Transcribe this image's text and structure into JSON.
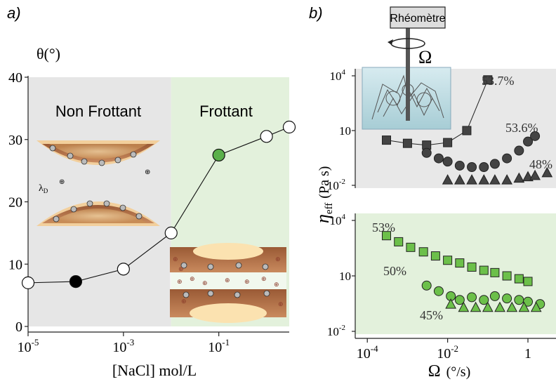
{
  "panel_a": {
    "label": "a)",
    "ylabel": "θ(°)",
    "xlabel": "[NaCl]  mol/L",
    "region_left_label": "Non Frottant",
    "region_right_label": "Frottant",
    "debye_label": "λ",
    "debye_sub": "D",
    "colors": {
      "region_left": "#e6e6e6",
      "region_right": "#e3f1dc",
      "filled_black": "#000000",
      "filled_green": "#5ab04a"
    }
  },
  "panel_b": {
    "label": "b)",
    "rheometer_label": "Rhéomètre",
    "omega_symbol": "Ω",
    "ylabel_main": "η",
    "ylabel_sub": "eff",
    "ylabel_unit": "(Pa s)",
    "xlabel_main": "Ω",
    "xlabel_unit": "(°/s)",
    "colors": {
      "top_bg": "#e8e8e8",
      "bottom_bg": "#e3f1dc",
      "top_marker": "#444444",
      "bottom_marker": "#6cc04a"
    }
  },
  "chart_data": [
    {
      "type": "line",
      "panel": "a",
      "xlabel": "[NaCl]  mol/L",
      "ylabel": "θ(°)",
      "xscale": "log",
      "xlim": [
        1e-05,
        1.0
      ],
      "ylim": [
        0,
        40
      ],
      "x_ticks": [
        "10",
        "10",
        "10"
      ],
      "x_tick_exponents": [
        "-5",
        "-3",
        "-1"
      ],
      "x_tick_values": [
        1e-05,
        0.001,
        0.1
      ],
      "y_ticks": [
        "0",
        "10",
        "20",
        "30",
        "40"
      ],
      "y_tick_values": [
        0,
        10,
        20,
        30,
        40
      ],
      "region_boundary_x": 0.01,
      "points": [
        {
          "x": 1e-05,
          "y": 7,
          "fill": "white"
        },
        {
          "x": 0.0001,
          "y": 7.2,
          "fill": "black"
        },
        {
          "x": 0.001,
          "y": 9.2,
          "fill": "white"
        },
        {
          "x": 0.01,
          "y": 15,
          "fill": "white"
        },
        {
          "x": 0.1,
          "y": 27.5,
          "fill": "green"
        },
        {
          "x": 1.0,
          "y": 30.5,
          "fill": "white"
        },
        {
          "x": 3.0,
          "y": 32,
          "fill": "white"
        }
      ]
    },
    {
      "type": "scatter",
      "panel": "b-top",
      "yscale": "log",
      "xscale": "log",
      "ylim": [
        0.01,
        10000
      ],
      "y_ticks": [
        "10",
        "10",
        "10"
      ],
      "y_tick_exponents": [
        "-2",
        "",
        "4"
      ],
      "y_tick_values": [
        0.01,
        10,
        10000
      ],
      "series": [
        {
          "name": "53.7%",
          "marker": "square",
          "connected": true,
          "x": [
            0.0003,
            0.001,
            0.003,
            0.01,
            0.03,
            0.1
          ],
          "y": [
            3,
            2,
            1.6,
            2.2,
            10,
            6000
          ]
        },
        {
          "name": "53.6%",
          "marker": "circle",
          "connected": false,
          "x": [
            0.003,
            0.006,
            0.01,
            0.02,
            0.04,
            0.08,
            0.15,
            0.3,
            0.6,
            1.0,
            1.5
          ],
          "y": [
            0.6,
            0.3,
            0.2,
            0.12,
            0.1,
            0.1,
            0.15,
            0.3,
            0.8,
            2.5,
            5
          ]
        },
        {
          "name": "48%",
          "marker": "triangle",
          "connected": false,
          "x": [
            0.01,
            0.02,
            0.04,
            0.08,
            0.15,
            0.3,
            0.6,
            1.0,
            1.5,
            3.0
          ],
          "y": [
            0.02,
            0.02,
            0.02,
            0.02,
            0.02,
            0.02,
            0.025,
            0.03,
            0.035,
            0.05
          ]
        }
      ]
    },
    {
      "type": "scatter",
      "panel": "b-bottom",
      "yscale": "log",
      "xscale": "log",
      "xlabel": "Ω (°/s)",
      "ylim": [
        0.01,
        10000
      ],
      "xlim": [
        5e-05,
        5
      ],
      "y_ticks": [
        "10",
        "10",
        "10"
      ],
      "y_tick_exponents": [
        "-2",
        "",
        "4"
      ],
      "y_tick_values": [
        0.01,
        10,
        10000
      ],
      "x_ticks": [
        "10",
        "10",
        "1"
      ],
      "x_tick_exponents": [
        "-4",
        "-2",
        ""
      ],
      "x_tick_values": [
        0.0001,
        0.01,
        1
      ],
      "series": [
        {
          "name": "53%",
          "marker": "square",
          "x": [
            0.0003,
            0.0006,
            0.0012,
            0.0025,
            0.005,
            0.01,
            0.02,
            0.04,
            0.08,
            0.15,
            0.3,
            0.6,
            1.0
          ],
          "y": [
            1500,
            700,
            350,
            200,
            120,
            70,
            50,
            30,
            20,
            15,
            10,
            7,
            5
          ]
        },
        {
          "name": "50%",
          "marker": "circle",
          "x": [
            0.003,
            0.006,
            0.012,
            0.02,
            0.04,
            0.08,
            0.15,
            0.3,
            0.6,
            1.0,
            2.0
          ],
          "y": [
            3,
            1.5,
            0.8,
            0.5,
            0.7,
            0.5,
            0.8,
            0.6,
            0.5,
            0.4,
            0.3
          ]
        },
        {
          "name": "45%",
          "marker": "triangle",
          "x": [
            0.012,
            0.025,
            0.05,
            0.1,
            0.2,
            0.4,
            0.8,
            1.6
          ],
          "y": [
            0.3,
            0.2,
            0.2,
            0.2,
            0.2,
            0.2,
            0.2,
            0.2
          ]
        }
      ]
    }
  ]
}
